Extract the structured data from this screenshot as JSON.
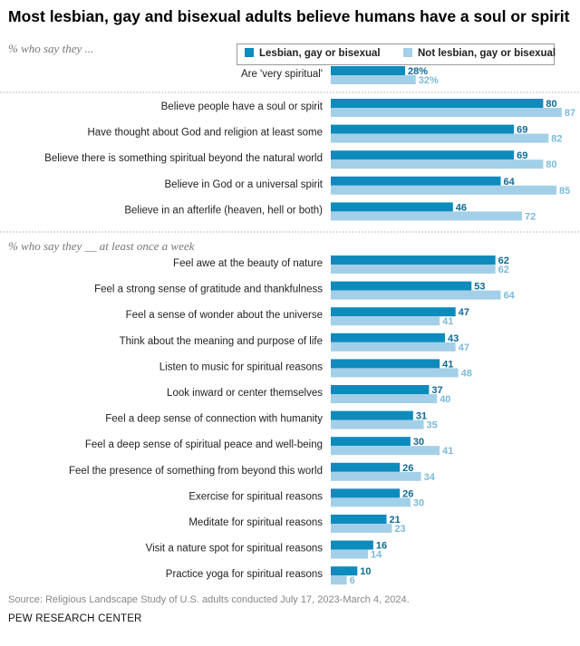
{
  "title": "Most lesbian, gay and bisexual adults believe humans have a soul or spirit",
  "legend": {
    "lgb": "Lesbian, gay or bisexual",
    "not_lgb": "Not lesbian, gay or bisexual"
  },
  "colors": {
    "lgb": "#0e8bbd",
    "not_lgb": "#a3d0e8",
    "lgb_text": "#116a94",
    "not_lgb_text": "#7cbad8"
  },
  "source": "Source: Religious Landscape Study of U.S. adults conducted July 17, 2023-March 4, 2024.",
  "org": "PEW RESEARCH CENTER",
  "chart_data": {
    "type": "bar",
    "orientation": "horizontal",
    "title": "Most lesbian, gay and bisexual adults believe humans have a soul or spirit",
    "legend_placement": "top-right",
    "series": [
      {
        "name": "Lesbian, gay or bisexual"
      },
      {
        "name": "Not lesbian, gay or bisexual"
      }
    ],
    "sections": [
      {
        "subtitle": "% who say they ...",
        "groups": [
          {
            "rows": [
              {
                "label": "Are 'very spiritual'",
                "values": [
                  28,
                  32
                ],
                "display": [
                  "28%",
                  "32%"
                ]
              }
            ]
          },
          {
            "rows": [
              {
                "label": "Believe people have a soul or spirit",
                "values": [
                  80,
                  87
                ],
                "display": [
                  "80",
                  "87"
                ]
              },
              {
                "label": "Have thought about God and religion at least some",
                "values": [
                  69,
                  82
                ],
                "display": [
                  "69",
                  "82"
                ]
              },
              {
                "label": "Believe there is something spiritual beyond the natural world",
                "values": [
                  69,
                  80
                ],
                "display": [
                  "69",
                  "80"
                ]
              },
              {
                "label": "Believe in God or a universal spirit",
                "values": [
                  64,
                  85
                ],
                "display": [
                  "64",
                  "85"
                ]
              },
              {
                "label": "Believe in an afterlife (heaven, hell or both)",
                "values": [
                  46,
                  72
                ],
                "display": [
                  "46",
                  "72"
                ]
              }
            ]
          }
        ]
      },
      {
        "subtitle": "% who say they __ at least once a week",
        "groups": [
          {
            "rows": [
              {
                "label": "Feel awe at the beauty of nature",
                "values": [
                  62,
                  62
                ],
                "display": [
                  "62",
                  "62"
                ]
              },
              {
                "label": "Feel a strong sense of gratitude and thankfulness",
                "values": [
                  53,
                  64
                ],
                "display": [
                  "53",
                  "64"
                ]
              },
              {
                "label": "Feel a sense of wonder about the universe",
                "values": [
                  47,
                  41
                ],
                "display": [
                  "47",
                  "41"
                ]
              },
              {
                "label": "Think about the meaning and purpose of life",
                "values": [
                  43,
                  47
                ],
                "display": [
                  "43",
                  "47"
                ]
              },
              {
                "label": "Listen to music for spiritual reasons",
                "values": [
                  41,
                  48
                ],
                "display": [
                  "41",
                  "48"
                ]
              },
              {
                "label": "Look inward or center themselves",
                "values": [
                  37,
                  40
                ],
                "display": [
                  "37",
                  "40"
                ]
              },
              {
                "label": "Feel a deep sense of connection with humanity",
                "values": [
                  31,
                  35
                ],
                "display": [
                  "31",
                  "35"
                ]
              },
              {
                "label": "Feel a deep sense of spiritual peace and well-being",
                "values": [
                  30,
                  41
                ],
                "display": [
                  "30",
                  "41"
                ]
              },
              {
                "label": "Feel the presence of something from beyond this world",
                "values": [
                  26,
                  34
                ],
                "display": [
                  "26",
                  "34"
                ]
              },
              {
                "label": "Exercise for spiritual reasons",
                "values": [
                  26,
                  30
                ],
                "display": [
                  "26",
                  "30"
                ]
              },
              {
                "label": "Meditate for spiritual reasons",
                "values": [
                  21,
                  23
                ],
                "display": [
                  "21",
                  "23"
                ]
              },
              {
                "label": "Visit a nature spot for spiritual reasons",
                "values": [
                  16,
                  14
                ],
                "display": [
                  "16",
                  "14"
                ]
              },
              {
                "label": "Practice yoga for spiritual reasons",
                "values": [
                  10,
                  6
                ],
                "display": [
                  "10",
                  "6"
                ]
              }
            ]
          }
        ]
      }
    ],
    "xlim": [
      0,
      100
    ]
  }
}
